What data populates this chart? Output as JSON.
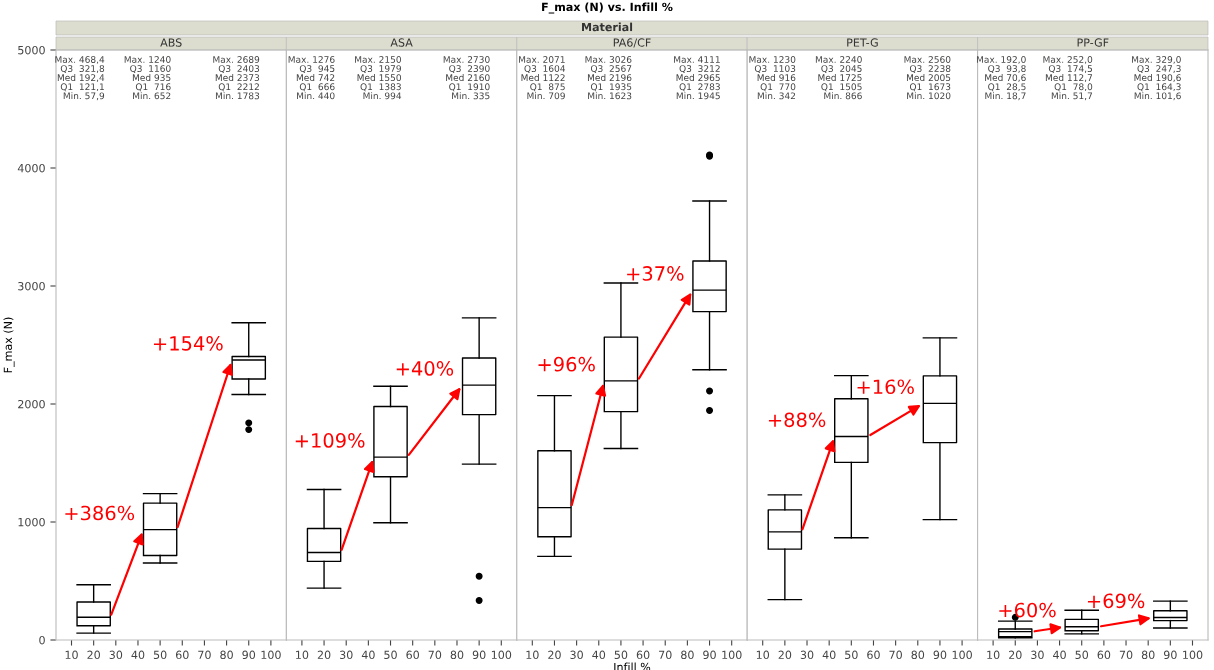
{
  "chart_data": [
    {
      "type": "box",
      "title": "ABS",
      "ylabel": "F_max (N)",
      "x": [
        20,
        50,
        90
      ],
      "xlim": [
        3,
        107
      ],
      "xticks": [
        10,
        20,
        30,
        40,
        50,
        60,
        70,
        80,
        90,
        100
      ],
      "ylim": [
        0,
        5000
      ],
      "yticks": [
        0,
        1000,
        2000,
        3000,
        4000,
        5000
      ],
      "grid": false,
      "color": "#000000",
      "boxes": [
        {
          "low": 57.9,
          "q1": 121.1,
          "median": 192.4,
          "q3": 321.8,
          "high": 468.4
        },
        {
          "low": 652,
          "q1": 716,
          "median": 935,
          "q3": 1160,
          "high": 1240
        },
        {
          "low": 2080,
          "q1": 2212,
          "median": 2373,
          "q3": 2403,
          "high": 2689,
          "outliers": [
            1840,
            1783
          ]
        }
      ],
      "value_labels": [
        "Max. 468,4\nQ3  321,8\nMed 192,4\nQ1  121,1\nMin. 57,9",
        "Max. 1240\nQ3  1160\nMed 935\nQ1  716\nMin. 652",
        "Max. 2689\nQ3  2403\nMed 2373\nQ1  2212\nMin. 1783"
      ],
      "annotations": [
        "F_max (N) vs. Infill %",
        "Material",
        "+386%",
        "+154%"
      ]
    },
    {
      "type": "box",
      "title": "ASA",
      "x": [
        20,
        50,
        90
      ],
      "xlim": [
        3,
        107
      ],
      "xticks": [
        10,
        20,
        30,
        40,
        50,
        60,
        70,
        80,
        90,
        100
      ],
      "ylim": [
        0,
        5000
      ],
      "yticks": [
        0,
        1000,
        2000,
        3000,
        4000,
        5000
      ],
      "tick_labels": "x",
      "grid": false,
      "color": "#000000",
      "boxes": [
        {
          "low": 440,
          "q1": 666,
          "median": 742,
          "q3": 945,
          "high": 1276
        },
        {
          "low": 994,
          "q1": 1383,
          "median": 1550,
          "q3": 1979,
          "high": 2150
        },
        {
          "low": 1490,
          "q1": 1910,
          "median": 2160,
          "q3": 2390,
          "high": 2730,
          "outliers": [
            540,
            335
          ]
        }
      ],
      "value_labels": [
        "Max. 1276\nQ3  945\nMed 742\nQ1  666\nMin. 440",
        "Max. 2150\nQ3  1979\nMed 1550\nQ1  1383\nMin. 994",
        "Max. 2730\nQ3  2390\nMed 2160\nQ1  1910\nMin. 335"
      ],
      "annotations": [
        "+109%",
        "+40%"
      ]
    },
    {
      "type": "box",
      "title": "PA6/CF",
      "xlabel": "Infill %",
      "x": [
        20,
        50,
        90
      ],
      "xlim": [
        3,
        107
      ],
      "xticks": [
        10,
        20,
        30,
        40,
        50,
        60,
        70,
        80,
        90,
        100
      ],
      "ylim": [
        0,
        5000
      ],
      "yticks": [
        0,
        1000,
        2000,
        3000,
        4000,
        5000
      ],
      "tick_labels": "x",
      "grid": false,
      "color": "#000000",
      "boxes": [
        {
          "low": 709,
          "q1": 875,
          "median": 1122,
          "q3": 1604,
          "high": 2071
        },
        {
          "low": 1623,
          "q1": 1935,
          "median": 2196,
          "q3": 2567,
          "high": 3026
        },
        {
          "low": 2290,
          "q1": 2783,
          "median": 2965,
          "q3": 3212,
          "high": 3720,
          "outliers": [
            4100,
            4111,
            2110,
            1945
          ]
        }
      ],
      "value_labels": [
        "Max. 2071\nQ3  1604\nMed 1122\nQ1  875\nMin. 709",
        "Max. 3026\nQ3  2567\nMed 2196\nQ1  1935\nMin. 1623",
        "Max. 4111\nQ3  3212\nMed 2965\nQ1  2783\nMin. 1945"
      ],
      "annotations": [
        "+96%",
        "+37%"
      ]
    },
    {
      "type": "box",
      "title": "PET-G",
      "x": [
        20,
        50,
        90
      ],
      "xlim": [
        3,
        107
      ],
      "xticks": [
        10,
        20,
        30,
        40,
        50,
        60,
        70,
        80,
        90,
        100
      ],
      "ylim": [
        0,
        5000
      ],
      "yticks": [
        0,
        1000,
        2000,
        3000,
        4000,
        5000
      ],
      "tick_labels": "x",
      "grid": false,
      "color": "#000000",
      "boxes": [
        {
          "low": 342,
          "q1": 770,
          "median": 916,
          "q3": 1103,
          "high": 1230
        },
        {
          "low": 866,
          "q1": 1505,
          "median": 1725,
          "q3": 2045,
          "high": 2240
        },
        {
          "low": 1020,
          "q1": 1673,
          "median": 2005,
          "q3": 2238,
          "high": 2560
        }
      ],
      "value_labels": [
        "Max. 1230\nQ3  1103\nMed 916\nQ1  770\nMin. 342",
        "Max. 2240\nQ3  2045\nMed 1725\nQ1  1505\nMin. 866",
        "Max. 2560\nQ3  2238\nMed 2005\nQ1  1673\nMin. 1020"
      ],
      "annotations": [
        "+88%",
        "+16%"
      ]
    },
    {
      "type": "box",
      "title": "PP-GF",
      "x": [
        20,
        50,
        90
      ],
      "xlim": [
        3,
        107
      ],
      "xticks": [
        10,
        20,
        30,
        40,
        50,
        60,
        70,
        80,
        90,
        100
      ],
      "ylim": [
        0,
        5000
      ],
      "yticks": [
        0,
        1000,
        2000,
        3000,
        4000,
        5000
      ],
      "tick_labels": "x",
      "grid": false,
      "color": "#000000",
      "boxes": [
        {
          "low": 18.7,
          "q1": 28.5,
          "median": 70.6,
          "q3": 93.8,
          "high": 160,
          "outliers": [
            192.0
          ]
        },
        {
          "low": 51.7,
          "q1": 78.0,
          "median": 112.7,
          "q3": 174.5,
          "high": 252.0
        },
        {
          "low": 101.6,
          "q1": 164.3,
          "median": 190.6,
          "q3": 247.3,
          "high": 329.0
        }
      ],
      "value_labels": [
        "Max. 192,0\nQ3  93,8\nMed 70,6\nQ1  28,5\nMin. 18,7",
        "Max. 252,0\nQ3  174,5\nMed 112,7\nQ1  78,0\nMin. 51,7",
        "Max. 329,0\nQ3  247,3\nMed 190,6\nQ1  164,3\nMin. 101,6"
      ],
      "annotations": [
        "+60%",
        "+69%"
      ]
    }
  ]
}
